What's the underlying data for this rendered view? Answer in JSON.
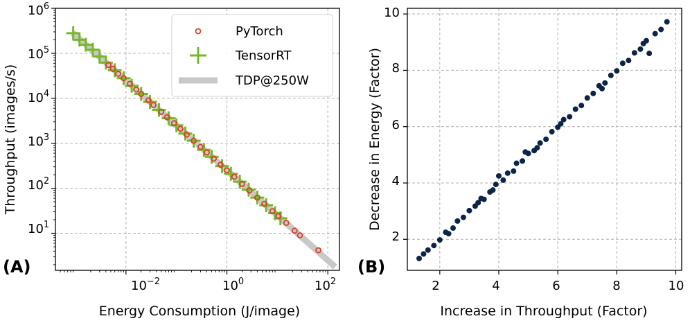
{
  "chart_data": [
    {
      "panel_label": "(A)",
      "type": "scatter",
      "x_scale": "log",
      "y_scale": "log",
      "xlabel": "Energy Consumption (J/image)",
      "ylabel": "Throughput (images/s)",
      "xlim": [
        0.0004,
        170
      ],
      "ylim": [
        1.5,
        1000000
      ],
      "x_ticks": [
        {
          "value": 0.01,
          "base": "10",
          "exp": "−2"
        },
        {
          "value": 1,
          "base": "10",
          "exp": "0"
        },
        {
          "value": 100,
          "base": "10",
          "exp": "2"
        }
      ],
      "y_ticks": [
        {
          "value": 10,
          "base": "10",
          "exp": "1"
        },
        {
          "value": 100,
          "base": "10",
          "exp": "2"
        },
        {
          "value": 1000,
          "base": "10",
          "exp": "3"
        },
        {
          "value": 10000,
          "base": "10",
          "exp": "4"
        },
        {
          "value": 100000,
          "base": "10",
          "exp": "5"
        },
        {
          "value": 1000000,
          "base": "10",
          "exp": "6"
        }
      ],
      "grid": true,
      "legend_position": "top-right",
      "series": [
        {
          "name": "PyTorch",
          "marker": "open-circle",
          "color": "#d9401f",
          "points": [
            [
              0.0045,
              55000
            ],
            [
              0.0055,
              45000
            ],
            [
              0.007,
              35000
            ],
            [
              0.009,
              28000
            ],
            [
              0.012,
              21000
            ],
            [
              0.016,
              15600
            ],
            [
              0.02,
              12500
            ],
            [
              0.028,
              9000
            ],
            [
              0.035,
              7100
            ],
            [
              0.05,
              5000
            ],
            [
              0.065,
              3800
            ],
            [
              0.09,
              2800
            ],
            [
              0.12,
              2100
            ],
            [
              0.16,
              1560
            ],
            [
              0.22,
              1140
            ],
            [
              0.3,
              830
            ],
            [
              0.4,
              625
            ],
            [
              0.55,
              455
            ],
            [
              0.75,
              333
            ],
            [
              1.0,
              250
            ],
            [
              1.4,
              180
            ],
            [
              2.0,
              125
            ],
            [
              2.8,
              90
            ],
            [
              4.0,
              62
            ],
            [
              5.5,
              45
            ],
            [
              8.0,
              31
            ],
            [
              10.5,
              24
            ],
            [
              15.0,
              17
            ],
            [
              22.0,
              11.4
            ],
            [
              28.0,
              9.0
            ],
            [
              65.0,
              4.2
            ]
          ]
        },
        {
          "name": "TensorRT",
          "marker": "plus",
          "color": "#76b82a",
          "points": [
            [
              0.0009,
              280000
            ],
            [
              0.0012,
              200000
            ],
            [
              0.0016,
              155000
            ],
            [
              0.0022,
              120000
            ],
            [
              0.003,
              85000
            ],
            [
              0.004,
              62000
            ],
            [
              0.006,
              42000
            ],
            [
              0.009,
              28000
            ],
            [
              0.013,
              19000
            ],
            [
              0.02,
              12500
            ],
            [
              0.03,
              8300
            ],
            [
              0.045,
              5500
            ],
            [
              0.07,
              3600
            ],
            [
              0.1,
              2500
            ],
            [
              0.15,
              1650
            ],
            [
              0.22,
              1140
            ],
            [
              0.35,
              715
            ],
            [
              0.5,
              500
            ],
            [
              0.8,
              310
            ],
            [
              1.2,
              210
            ],
            [
              1.8,
              140
            ],
            [
              2.7,
              93
            ],
            [
              4.0,
              62
            ],
            [
              6.0,
              42
            ],
            [
              9.0,
              28
            ],
            [
              11.5,
              21.5
            ]
          ]
        },
        {
          "name": "TDP@250W",
          "marker": "line",
          "color": "#c8c8c8",
          "line_x": [
            0.00088,
            140
          ]
        }
      ]
    },
    {
      "panel_label": "(B)",
      "type": "scatter",
      "xlabel": "Increase in Throughput (Factor)",
      "ylabel": "Decrease in Energy (Factor)",
      "xlim": [
        0.9,
        10.2
      ],
      "ylim": [
        0.9,
        10.2
      ],
      "x_ticks": [
        2,
        4,
        6,
        8,
        10
      ],
      "y_ticks": [
        2,
        4,
        6,
        8,
        10
      ],
      "grid": true,
      "color": "#0b2447",
      "points": [
        [
          1.3,
          1.32
        ],
        [
          1.45,
          1.48
        ],
        [
          1.6,
          1.62
        ],
        [
          1.8,
          1.78
        ],
        [
          2.0,
          1.98
        ],
        [
          2.2,
          2.25
        ],
        [
          2.45,
          2.4
        ],
        [
          2.6,
          2.65
        ],
        [
          2.8,
          2.78
        ],
        [
          3.0,
          3.02
        ],
        [
          3.2,
          3.18
        ],
        [
          3.4,
          3.45
        ],
        [
          3.5,
          3.42
        ],
        [
          3.7,
          3.68
        ],
        [
          3.9,
          3.95
        ],
        [
          4.0,
          4.25
        ],
        [
          4.15,
          4.1
        ],
        [
          4.3,
          4.35
        ],
        [
          4.5,
          4.42
        ],
        [
          4.6,
          4.7
        ],
        [
          4.8,
          4.78
        ],
        [
          5.0,
          5.05
        ],
        [
          5.2,
          5.15
        ],
        [
          5.4,
          5.42
        ],
        [
          5.6,
          5.55
        ],
        [
          5.8,
          5.82
        ],
        [
          6.0,
          5.98
        ],
        [
          6.2,
          6.25
        ],
        [
          6.4,
          6.35
        ],
        [
          6.6,
          6.62
        ],
        [
          6.8,
          6.75
        ],
        [
          7.0,
          7.02
        ],
        [
          7.2,
          7.18
        ],
        [
          7.4,
          7.45
        ],
        [
          7.6,
          7.55
        ],
        [
          7.8,
          7.82
        ],
        [
          8.0,
          7.98
        ],
        [
          8.2,
          8.25
        ],
        [
          8.4,
          8.35
        ],
        [
          8.6,
          8.62
        ],
        [
          8.8,
          8.75
        ],
        [
          9.0,
          9.05
        ],
        [
          9.1,
          8.6
        ],
        [
          9.3,
          9.3
        ],
        [
          9.5,
          9.45
        ],
        [
          9.7,
          9.72
        ],
        [
          3.3,
          3.3
        ],
        [
          4.9,
          5.1
        ],
        [
          6.1,
          6.1
        ],
        [
          2.3,
          2.2
        ],
        [
          7.5,
          7.35
        ],
        [
          8.9,
          8.95
        ],
        [
          5.3,
          5.25
        ],
        [
          3.8,
          3.75
        ]
      ]
    }
  ]
}
